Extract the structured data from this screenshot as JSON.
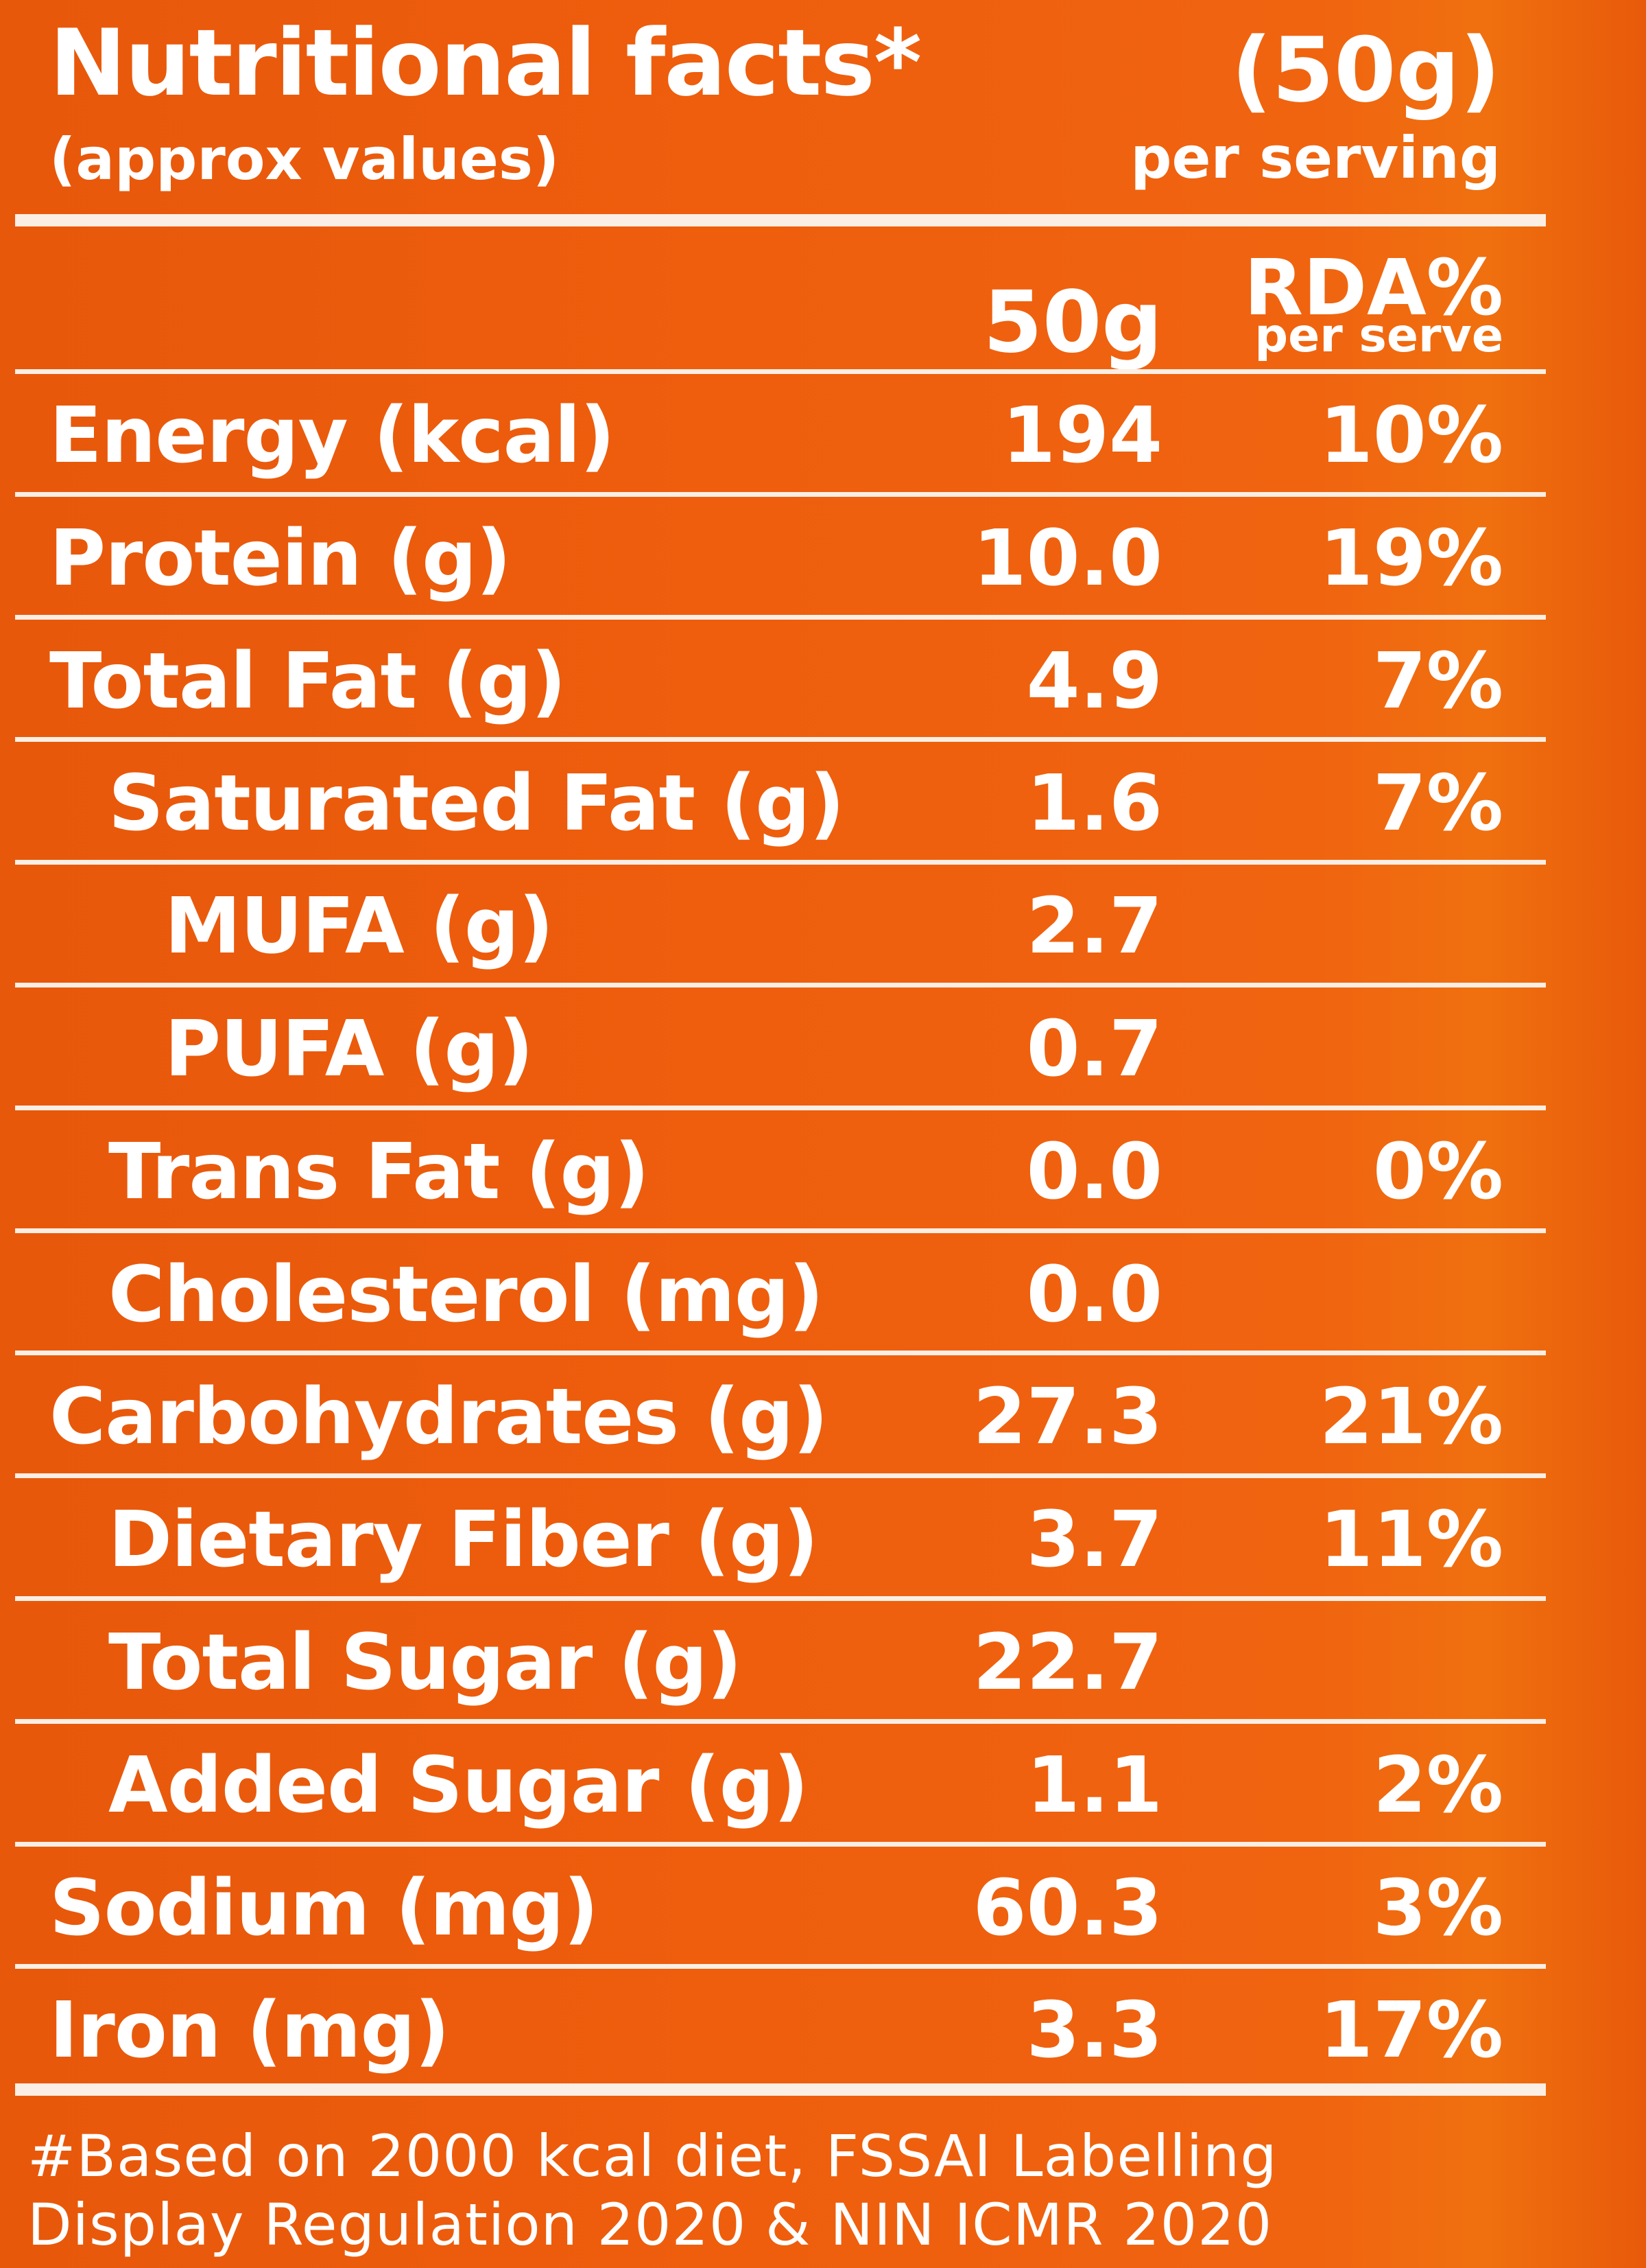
{
  "header": {
    "title": "Nutritional facts*",
    "subtitle": "(approx values)",
    "serving_size": "(50g)",
    "per_serving": "per serving"
  },
  "columns": {
    "amount": "50g",
    "rda": "RDA%",
    "rda_sub": "per serve"
  },
  "rows": [
    {
      "label": "Energy (kcal)",
      "amount": "194",
      "rda": "10%",
      "indent": 0
    },
    {
      "label": "Protein (g)",
      "amount": "10.0",
      "rda": "19%",
      "indent": 0
    },
    {
      "label": "Total Fat (g)",
      "amount": "4.9",
      "rda": "7%",
      "indent": 0
    },
    {
      "label": "Saturated Fat (g)",
      "amount": "1.6",
      "rda": "7%",
      "indent": 1
    },
    {
      "label": "MUFA (g)",
      "amount": "2.7",
      "rda": "",
      "indent": 2
    },
    {
      "label": "PUFA (g)",
      "amount": "0.7",
      "rda": "",
      "indent": 2
    },
    {
      "label": "Trans Fat (g)",
      "amount": "0.0",
      "rda": "0%",
      "indent": 1
    },
    {
      "label": "Cholesterol (mg)",
      "amount": "0.0",
      "rda": "",
      "indent": 1
    },
    {
      "label": "Carbohydrates (g)",
      "amount": "27.3",
      "rda": "21%",
      "indent": 0
    },
    {
      "label": "Dietary Fiber (g)",
      "amount": "3.7",
      "rda": "11%",
      "indent": 1
    },
    {
      "label": "Total Sugar (g)",
      "amount": "22.7",
      "rda": "",
      "indent": 1
    },
    {
      "label": "Added Sugar (g)",
      "amount": "1.1",
      "rda": "2%",
      "indent": 1
    },
    {
      "label": "Sodium (mg)",
      "amount": "60.3",
      "rda": "3%",
      "indent": 0
    },
    {
      "label": "Iron (mg)",
      "amount": "3.3",
      "rda": "17%",
      "indent": 0
    }
  ],
  "footnote": {
    "line1": "#Based on 2000 kcal diet, FSSAI Labelling",
    "line2": "Display Regulation 2020 & NIN ICMR 2020"
  },
  "colors": {
    "background": "#ee5e0d",
    "text": "#ffffff",
    "rules": "#fbeee4"
  }
}
